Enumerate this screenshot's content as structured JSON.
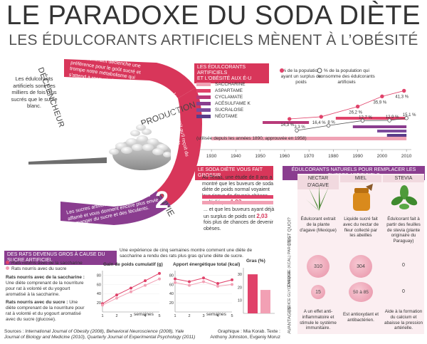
{
  "header": {
    "title": "LE PARADOXE DU SODA DIÈTE",
    "subtitle": "LES ÉDULCORANTS ARTIFICIELS MÈNENT À L’OBÉSITÉ"
  },
  "intro": {
    "text": "Les édulcorants artificiels sont des milliers de fois plus sucrés que le sucre blanc."
  },
  "cycle": {
    "step1_label": "DÉCLENCHEUR",
    "step1_text": "En consommant déclenche une préférence pour le goût sucré et trompe notre métabolisme qui s'attend à recevoir des calories.",
    "step1_num": "1",
    "step2_label": "PRODUCTION",
    "step2_text": "Votre corps croit qu'il reçoit du sucre. Il produit donc de l'insuline, l'hormone qui régularise la glycémie.",
    "step2_num": "2",
    "step3_label": "ENVIE",
    "step3_text": "Les sucres artificiels vous rendent plus affamé et vous donnent encore plus envie de manger du sucre et des féculents.",
    "step3_num": "3"
  },
  "sweeteners_timeline": {
    "header_line1": "LES ÉDULCORANTS ARTIFICIELS",
    "header_line2": "ET L'OBÉSITÉ AUX É-U",
    "legend": [
      {
        "name": "SACCHARINE",
        "color": "#f0a3b5"
      },
      {
        "name": "ASPARTAME",
        "color": "#e0426a"
      },
      {
        "name": "CYCLAMATE",
        "color": "#b83a7a"
      },
      {
        "name": "ACÉSULFAME K",
        "color": "#8a3d8f"
      },
      {
        "name": "SUCRALOSE",
        "color": "#7c4a9c"
      },
      {
        "name": "NÉOTAME",
        "color": "#5a3d8a"
      }
    ],
    "note": "(utilisée depuis les années 1890, approuvée en 1958)",
    "x_ticks": [
      "1930",
      "1940",
      "1950",
      "1960",
      "1970",
      "1980",
      "1990",
      "2000",
      "2010"
    ],
    "obesity_label": "% de la population ayant un surplus de poids",
    "consumers_label": "% de la population qui consomme des édulcorants artificiels",
    "chart_data": {
      "type": "line",
      "x_range": [
        1925,
        2012
      ],
      "series": [
        {
          "points": [
            [
              1962,
              14.3
            ],
            [
              1975,
              16.4
            ],
            [
              1990,
              26.2
            ],
            [
              2000,
              35.9
            ],
            [
              2009,
              41.3
            ]
          ],
          "labels": [
            "14,3 %",
            "16,4 %",
            "26,2 %",
            "35,9 %",
            "41,3 %"
          ],
          "color": "#e0426a"
        },
        {
          "points": [
            [
              1965,
              3.3
            ],
            [
              1978,
              8.0
            ],
            [
              1992,
              12.7
            ],
            [
              2003,
              12.9
            ],
            [
              2010,
              15.1
            ]
          ],
          "labels": [
            "3,3 %",
            "8 %",
            "12,7 %",
            "12,9 %",
            "15,1 %"
          ],
          "color": "#555555"
        }
      ],
      "usage_bars": [
        {
          "name": "SACCHARINE",
          "start": 1930,
          "end": 2010
        },
        {
          "name": "ASPARTAME",
          "start": 1981,
          "end": 2010
        },
        {
          "name": "CYCLAMATE",
          "start": 1951,
          "end": 1970
        },
        {
          "name": "ACÉSULFAME K",
          "start": 1988,
          "end": 2010
        },
        {
          "name": "SUCRALOSE",
          "start": 1998,
          "end": 2010
        },
        {
          "name": "NÉOTAME",
          "start": 2002,
          "end": 2010
        }
      ]
    }
  },
  "soda_fat": {
    "header": "LE SODA DIÈTE VOUS FAIT GROSSIR",
    "text1": "Au Texas, une étude de 8 ans a montré que les buveurs de soda diète de poids normal voyaient leur risque de devenir obèses multiplié par",
    "value1": "1,93.",
    "text2": "... et que les buveurs ayant déjà un surplus de poids ont",
    "value2": "2,03",
    "text3": "fois plus de chances de devenir obèses."
  },
  "natural": {
    "header": "ÉDULCORANTS NATURELS POUR REMPLACER LES SUCRES ARTIFICIELS",
    "columns": [
      "NECTAR D'AGAVE",
      "MIEL",
      "STEVIA"
    ],
    "row_labels": [
      "C'EST QUOI?",
      "ÉNERGIE (KCAL) PAR 100G",
      "INDICE GLYCÉMIQUE",
      "AVANTAGES"
    ],
    "what": [
      "Édulcorant extrait de la plante d'agave (Mexique)",
      "Liquide sucré fait avec du nectar de fleur collecté par les abeilles",
      "Édulcorant fait à partir des feuilles de stevia (plante originaire du Paraguay)"
    ],
    "energy": [
      "310",
      "304",
      "0"
    ],
    "glycemic": [
      "15",
      "50 à 85",
      "0"
    ],
    "advantages": [
      "A un effet anti-inflammatoire et stimule le système immunitaire.",
      "Est antioxydant et antibactérien.",
      "Aide à la formation du calcium et abaisse la pression artérielle."
    ]
  },
  "rats": {
    "header": "DES RATS DEVENUS GROS À CAUSE DU SUCRE ARTIFICIEL",
    "intro": "Une expérience de cinq semaines montre comment une diète de saccharine a rendu des rats plus gras qu'une diète de sucre.",
    "legend1": "Rats nourris avec de la saccharine",
    "legend2": "Rats nourris avec du sucre",
    "desc1_title": "Rats nourris avec de la saccharine :",
    "desc1": "Une diète comprenant de la nourriture pour rat à volonté et du yogourt aromatisé à la saccharine.",
    "desc2_title": "Rats nourris avec du sucre :",
    "desc2": "Une diète comprenant de la nourriture pour rat à volonté et du yogourt aromatisé avec du sucre (glucose).",
    "colors": {
      "saccharine": "#e0426a",
      "sugar": "#f2a0b4"
    },
    "weight_chart": {
      "title": "Gain de poids cumulatif (g)",
      "xlabel": "semaines",
      "x": [
        "1",
        "2",
        "3",
        "4",
        "5"
      ],
      "y_ticks": [
        "20",
        "40",
        "60",
        "80"
      ],
      "ylim": [
        0,
        90
      ],
      "saccharine": [
        18,
        37,
        52,
        68,
        84
      ],
      "sugar": [
        15,
        30,
        44,
        58,
        72
      ]
    },
    "energy_chart": {
      "title": "Apport énergétique total (kcal)",
      "xlabel": "semaines",
      "x": [
        "1",
        "2",
        "3",
        "4",
        "5"
      ],
      "y_ticks": [
        "20",
        "40",
        "60",
        "80"
      ],
      "ylim": [
        0,
        90
      ],
      "saccharine": [
        72,
        66,
        74,
        62,
        70
      ],
      "sugar": [
        64,
        58,
        66,
        56,
        60
      ]
    },
    "fat_chart": {
      "title": "Gras (%)",
      "y_ticks": [
        "10",
        "20",
        "30"
      ],
      "ylim": [
        0,
        35
      ],
      "saccharine": 30,
      "sugar": 18
    }
  },
  "footer": {
    "sources_prefix": "Sources : ",
    "sources": "International Journal of Obesity (2008), Behavioral Neuroscience (2008), Yale Journal of Biology and Medicine (2010), Quarterly Journal of Experimental Psychology (2011)",
    "credits": "Graphique : Mia Korab. Texte : Anthony Johnston, Evgeniy Moruz"
  }
}
